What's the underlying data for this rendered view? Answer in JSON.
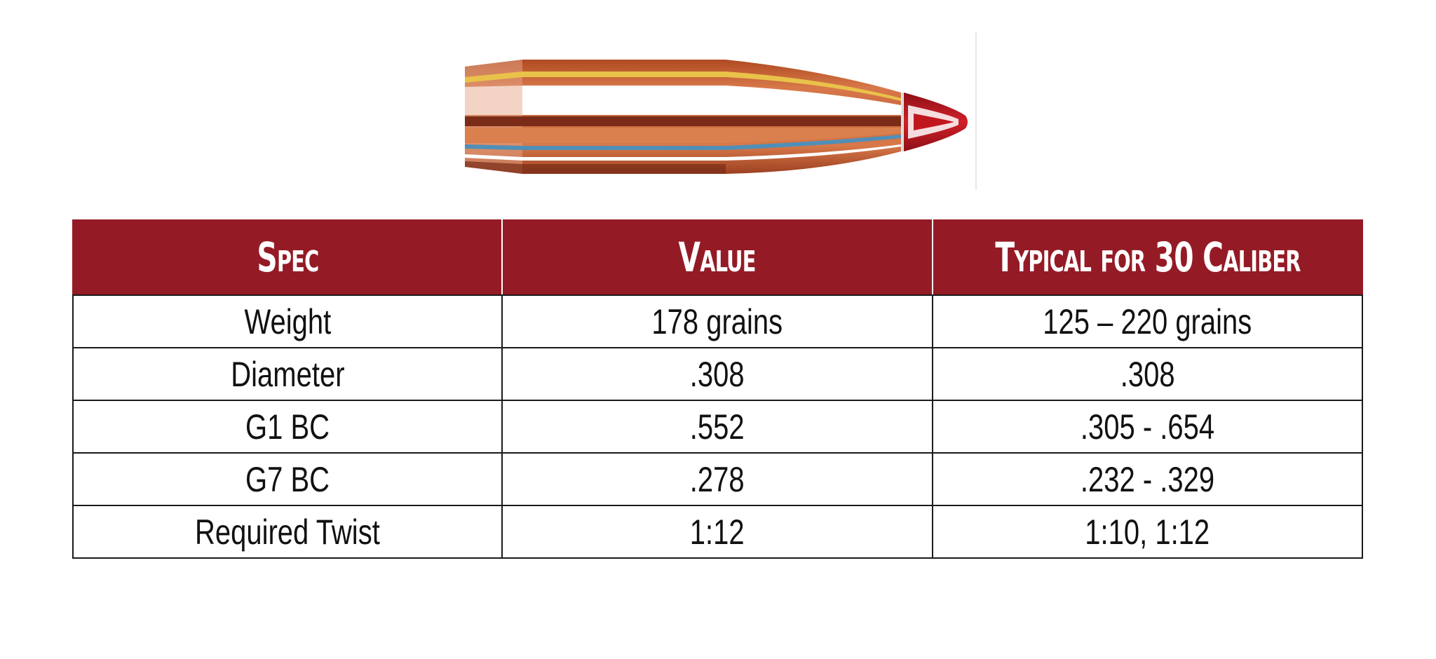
{
  "colors": {
    "header_bg": "#941b25",
    "header_text": "#ffffff",
    "border": "#1a1a1a",
    "copper": "#c8643c",
    "polymer_tip": "#c0171f"
  },
  "illustration": {
    "icon": "bullet-cutaway-icon"
  },
  "table": {
    "headers": [
      "Spec",
      "Value",
      "Typical for 30 Caliber"
    ],
    "rows": [
      [
        "Weight",
        "178 grains",
        "125 – 220 grains"
      ],
      [
        "Diameter",
        ".308",
        ".308"
      ],
      [
        "G1 BC",
        ".552",
        ".305 - .654"
      ],
      [
        "G7 BC",
        ".278",
        ".232 - .329"
      ],
      [
        "Required Twist",
        "1:12",
        "1:10, 1:12"
      ]
    ]
  }
}
